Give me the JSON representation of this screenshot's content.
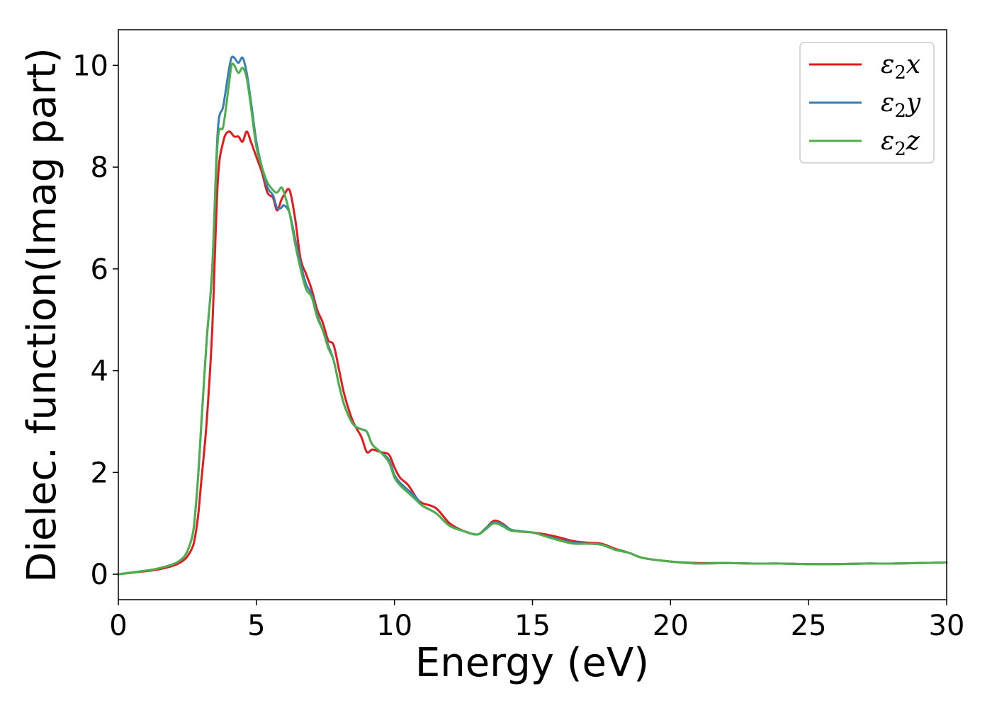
{
  "chart_data": {
    "type": "line",
    "xlabel": "Energy (eV)",
    "ylabel": "Dielec. function(Imag part)",
    "xlim": [
      0,
      30
    ],
    "ylim": [
      -0.5,
      10.7
    ],
    "xticks": [
      0,
      5,
      10,
      15,
      20,
      25,
      30
    ],
    "yticks": [
      0,
      2,
      4,
      6,
      8,
      10
    ],
    "grid": false,
    "legend_position": "top-right",
    "series": [
      {
        "name": "ε2x",
        "legend_base": "ε",
        "legend_sub": "2",
        "legend_axis": "x",
        "color": "#e41a1c",
        "x": [
          0,
          1,
          1.5,
          2,
          2.3,
          2.5,
          2.7,
          2.8,
          2.9,
          3.0,
          3.2,
          3.4,
          3.6,
          3.8,
          4.0,
          4.2,
          4.35,
          4.5,
          4.65,
          4.8,
          5.0,
          5.2,
          5.4,
          5.6,
          5.75,
          5.9,
          6.0,
          6.2,
          6.4,
          6.6,
          6.8,
          7.0,
          7.2,
          7.4,
          7.6,
          7.8,
          8.0,
          8.2,
          8.5,
          8.8,
          9.0,
          9.2,
          9.5,
          9.8,
          10.0,
          10.2,
          10.5,
          10.8,
          11.0,
          11.5,
          12.0,
          12.5,
          13.0,
          13.3,
          13.6,
          13.9,
          14.2,
          14.5,
          15.0,
          15.5,
          16.0,
          16.5,
          17.0,
          17.5,
          18.0,
          18.5,
          19.0,
          20.0,
          21.0,
          22.0,
          23.0,
          24.0,
          25.0,
          26.0,
          27.0,
          28.0,
          29.0,
          30.0
        ],
        "values": [
          0,
          0.06,
          0.1,
          0.17,
          0.25,
          0.35,
          0.55,
          0.8,
          1.2,
          1.8,
          3.0,
          4.8,
          7.7,
          8.5,
          8.7,
          8.6,
          8.6,
          8.5,
          8.7,
          8.5,
          8.2,
          7.9,
          7.5,
          7.4,
          7.15,
          7.35,
          7.45,
          7.55,
          7.0,
          6.2,
          5.9,
          5.6,
          5.2,
          4.95,
          4.6,
          4.5,
          4.0,
          3.5,
          3.0,
          2.7,
          2.4,
          2.45,
          2.4,
          2.35,
          2.1,
          1.9,
          1.75,
          1.5,
          1.4,
          1.3,
          1.0,
          0.85,
          0.78,
          0.9,
          1.05,
          1.0,
          0.88,
          0.84,
          0.82,
          0.78,
          0.72,
          0.65,
          0.62,
          0.6,
          0.5,
          0.42,
          0.32,
          0.25,
          0.22,
          0.22,
          0.21,
          0.21,
          0.2,
          0.2,
          0.21,
          0.21,
          0.22,
          0.23
        ]
      },
      {
        "name": "ε2y",
        "legend_base": "ε",
        "legend_sub": "2",
        "legend_axis": "y",
        "color": "#377eb8",
        "x": [
          0,
          1,
          1.5,
          2,
          2.3,
          2.5,
          2.7,
          2.8,
          2.9,
          3.0,
          3.2,
          3.4,
          3.6,
          3.8,
          4.0,
          4.1,
          4.2,
          4.35,
          4.5,
          4.65,
          4.8,
          5.0,
          5.2,
          5.4,
          5.6,
          5.75,
          5.9,
          6.0,
          6.2,
          6.4,
          6.6,
          6.8,
          7.0,
          7.2,
          7.4,
          7.6,
          7.8,
          8.0,
          8.2,
          8.5,
          8.8,
          9.0,
          9.2,
          9.5,
          9.8,
          10.0,
          10.2,
          10.5,
          10.8,
          11.0,
          11.5,
          12.0,
          12.5,
          13.0,
          13.3,
          13.6,
          13.9,
          14.2,
          14.5,
          15.0,
          15.5,
          16.0,
          16.5,
          17.0,
          17.5,
          18.0,
          18.5,
          19.0,
          20.0,
          21.0,
          22.0,
          23.0,
          24.0,
          25.0,
          26.0,
          27.0,
          28.0,
          29.0,
          30.0
        ],
        "values": [
          0,
          0.07,
          0.12,
          0.2,
          0.3,
          0.45,
          0.8,
          1.3,
          2.0,
          2.9,
          4.6,
          6.0,
          8.7,
          9.2,
          9.9,
          10.15,
          10.15,
          10.05,
          10.15,
          9.85,
          9.3,
          8.5,
          8.0,
          7.6,
          7.45,
          7.2,
          7.2,
          7.25,
          7.1,
          6.6,
          6.1,
          5.7,
          5.5,
          5.1,
          4.8,
          4.5,
          4.2,
          3.7,
          3.3,
          2.95,
          2.85,
          2.8,
          2.55,
          2.4,
          2.25,
          1.95,
          1.8,
          1.65,
          1.5,
          1.35,
          1.2,
          0.95,
          0.85,
          0.78,
          0.9,
          1.02,
          0.98,
          0.88,
          0.85,
          0.82,
          0.75,
          0.68,
          0.62,
          0.6,
          0.58,
          0.48,
          0.42,
          0.32,
          0.25,
          0.21,
          0.22,
          0.21,
          0.21,
          0.2,
          0.2,
          0.21,
          0.21,
          0.22,
          0.23
        ]
      },
      {
        "name": "ε2z",
        "legend_base": "ε",
        "legend_sub": "2",
        "legend_axis": "z",
        "color": "#4daf4a",
        "x": [
          0,
          1,
          1.5,
          2,
          2.3,
          2.5,
          2.7,
          2.8,
          2.9,
          3.0,
          3.2,
          3.4,
          3.6,
          3.8,
          4.0,
          4.1,
          4.2,
          4.35,
          4.5,
          4.65,
          4.8,
          5.0,
          5.2,
          5.4,
          5.6,
          5.75,
          5.9,
          6.0,
          6.2,
          6.4,
          6.6,
          6.8,
          7.0,
          7.2,
          7.4,
          7.6,
          7.8,
          8.0,
          8.2,
          8.5,
          8.8,
          9.0,
          9.2,
          9.5,
          9.8,
          10.0,
          10.2,
          10.5,
          10.8,
          11.0,
          11.5,
          12.0,
          12.5,
          13.0,
          13.3,
          13.6,
          13.9,
          14.2,
          14.5,
          15.0,
          15.5,
          16.0,
          16.5,
          17.0,
          17.5,
          18.0,
          18.5,
          19.0,
          20.0,
          21.0,
          22.0,
          23.0,
          24.0,
          25.0,
          26.0,
          27.0,
          28.0,
          29.0,
          30.0
        ],
        "values": [
          0,
          0.07,
          0.12,
          0.2,
          0.3,
          0.45,
          0.8,
          1.3,
          2.0,
          2.9,
          4.6,
          6.0,
          8.5,
          8.8,
          9.6,
          10.0,
          10.0,
          9.85,
          9.95,
          9.75,
          9.2,
          8.4,
          8.0,
          7.7,
          7.55,
          7.5,
          7.6,
          7.5,
          7.1,
          6.5,
          6.0,
          5.6,
          5.45,
          5.05,
          4.8,
          4.45,
          4.2,
          3.7,
          3.3,
          2.95,
          2.85,
          2.8,
          2.55,
          2.4,
          2.2,
          1.9,
          1.75,
          1.6,
          1.45,
          1.35,
          1.2,
          0.95,
          0.85,
          0.78,
          0.88,
          1.0,
          0.95,
          0.86,
          0.84,
          0.82,
          0.74,
          0.66,
          0.6,
          0.6,
          0.58,
          0.48,
          0.42,
          0.32,
          0.25,
          0.21,
          0.22,
          0.21,
          0.21,
          0.2,
          0.2,
          0.21,
          0.21,
          0.22,
          0.23
        ]
      }
    ]
  }
}
